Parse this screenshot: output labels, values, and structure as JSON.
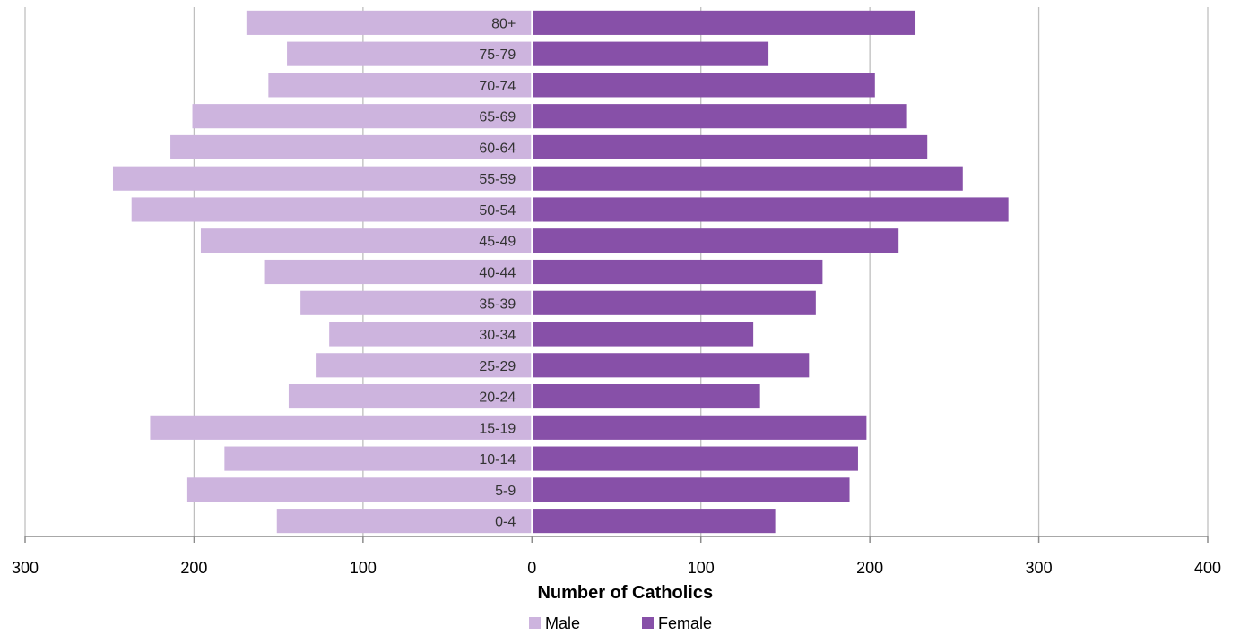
{
  "chart_data": {
    "type": "bar",
    "orientation": "horizontal",
    "subtype": "population-pyramid",
    "categories": [
      "0-4",
      "5-9",
      "10-14",
      "15-19",
      "20-24",
      "25-29",
      "30-34",
      "35-39",
      "40-44",
      "45-49",
      "50-54",
      "55-59",
      "60-64",
      "65-69",
      "70-74",
      "75-79",
      "80+"
    ],
    "series": [
      {
        "name": "Male",
        "color": "#cdb4de",
        "direction": "left",
        "values": [
          151,
          204,
          182,
          226,
          144,
          128,
          120,
          137,
          158,
          196,
          237,
          248,
          214,
          201,
          156,
          145,
          169
        ]
      },
      {
        "name": "Female",
        "color": "#8750a8",
        "direction": "right",
        "values": [
          144,
          188,
          193,
          198,
          135,
          164,
          131,
          168,
          172,
          217,
          282,
          255,
          234,
          222,
          203,
          140,
          227
        ]
      }
    ],
    "xlabel": "Number of Catholics",
    "ylabel": "",
    "title": "",
    "xlim": [
      -300,
      400
    ],
    "x_tick_values": [
      -300,
      -200,
      -100,
      0,
      100,
      200,
      300,
      400
    ],
    "x_tick_labels": [
      "300",
      "200",
      "100",
      "0",
      "100",
      "200",
      "300",
      "400"
    ],
    "grid": "vertical",
    "legend_position": "bottom"
  }
}
